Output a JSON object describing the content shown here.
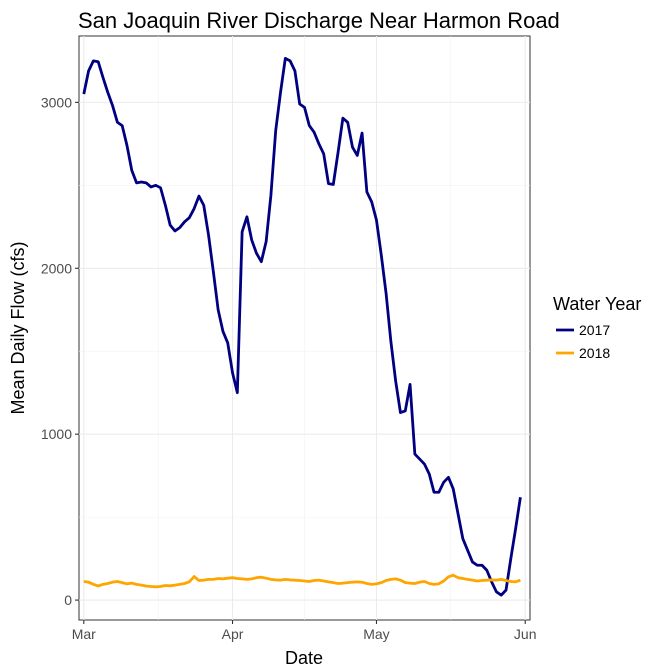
{
  "chart_data": {
    "type": "line",
    "title": "San Joaquin River Discharge Near Harmon Road",
    "xlabel": "Date",
    "ylabel": "Mean Daily Flow (cfs)",
    "ylim": [
      -120,
      3400
    ],
    "xlim": [
      "2017-02-28",
      "2017-06-02"
    ],
    "x_ticks": [
      {
        "date": "2017-03-01",
        "label": "Mar"
      },
      {
        "date": "2017-04-01",
        "label": "Apr"
      },
      {
        "date": "2017-05-01",
        "label": "May"
      },
      {
        "date": "2017-06-01",
        "label": "Jun"
      }
    ],
    "y_ticks": [
      0,
      1000,
      2000,
      3000
    ],
    "grid": true,
    "legend": {
      "title": "Water Year",
      "position": "right"
    },
    "x": [
      "2017-03-01",
      "2017-03-02",
      "2017-03-03",
      "2017-03-04",
      "2017-03-05",
      "2017-03-06",
      "2017-03-07",
      "2017-03-08",
      "2017-03-09",
      "2017-03-10",
      "2017-03-11",
      "2017-03-12",
      "2017-03-13",
      "2017-03-14",
      "2017-03-15",
      "2017-03-16",
      "2017-03-17",
      "2017-03-18",
      "2017-03-19",
      "2017-03-20",
      "2017-03-21",
      "2017-03-22",
      "2017-03-23",
      "2017-03-24",
      "2017-03-25",
      "2017-03-26",
      "2017-03-27",
      "2017-03-28",
      "2017-03-29",
      "2017-03-30",
      "2017-03-31",
      "2017-04-01",
      "2017-04-02",
      "2017-04-03",
      "2017-04-04",
      "2017-04-05",
      "2017-04-06",
      "2017-04-07",
      "2017-04-08",
      "2017-04-09",
      "2017-04-10",
      "2017-04-11",
      "2017-04-12",
      "2017-04-13",
      "2017-04-14",
      "2017-04-15",
      "2017-04-16",
      "2017-04-17",
      "2017-04-18",
      "2017-04-19",
      "2017-04-20",
      "2017-04-21",
      "2017-04-22",
      "2017-04-23",
      "2017-04-24",
      "2017-04-25",
      "2017-04-26",
      "2017-04-27",
      "2017-04-28",
      "2017-04-29",
      "2017-04-30",
      "2017-05-01",
      "2017-05-02",
      "2017-05-03",
      "2017-05-04",
      "2017-05-05",
      "2017-05-06",
      "2017-05-07",
      "2017-05-08",
      "2017-05-09",
      "2017-05-10",
      "2017-05-11",
      "2017-05-12",
      "2017-05-13",
      "2017-05-14",
      "2017-05-15",
      "2017-05-16",
      "2017-05-17",
      "2017-05-18",
      "2017-05-19",
      "2017-05-20",
      "2017-05-21",
      "2017-05-22",
      "2017-05-23",
      "2017-05-24",
      "2017-05-25",
      "2017-05-26",
      "2017-05-27",
      "2017-05-28",
      "2017-05-29",
      "2017-05-30",
      "2017-05-31"
    ],
    "series": [
      {
        "name": "2017",
        "color": "#000080",
        "values": [
          3050,
          3190,
          3250,
          3245,
          3150,
          3060,
          2980,
          2880,
          2860,
          2740,
          2590,
          2515,
          2520,
          2515,
          2490,
          2500,
          2485,
          2380,
          2260,
          2225,
          2245,
          2280,
          2305,
          2360,
          2435,
          2380,
          2200,
          1980,
          1750,
          1620,
          1550,
          1370,
          1250,
          2220,
          2310,
          2170,
          2090,
          2040,
          2160,
          2440,
          2830,
          3060,
          3265,
          3250,
          3190,
          2990,
          2970,
          2860,
          2820,
          2750,
          2690,
          2510,
          2505,
          2700,
          2905,
          2880,
          2730,
          2680,
          2815,
          2460,
          2400,
          2290,
          2080,
          1850,
          1560,
          1320,
          1130,
          1140,
          1300,
          880,
          850,
          820,
          760,
          650,
          650,
          710,
          740,
          670,
          520,
          370,
          300,
          230,
          210,
          210,
          180,
          110,
          50,
          30,
          60,
          250,
          430,
          620
        ]
      },
      {
        "name": "2018",
        "color": "#FFA500",
        "values": [
          112,
          108,
          95,
          85,
          95,
          100,
          108,
          112,
          105,
          98,
          102,
          95,
          90,
          85,
          82,
          80,
          82,
          88,
          86,
          90,
          95,
          100,
          110,
          142,
          118,
          120,
          125,
          125,
          130,
          128,
          132,
          135,
          130,
          128,
          125,
          128,
          135,
          138,
          132,
          125,
          122,
          120,
          125,
          122,
          120,
          118,
          115,
          112,
          118,
          120,
          115,
          110,
          105,
          100,
          102,
          105,
          108,
          110,
          108,
          100,
          95,
          98,
          105,
          118,
          125,
          128,
          120,
          105,
          102,
          100,
          108,
          112,
          100,
          95,
          98,
          115,
          140,
          150,
          135,
          130,
          125,
          120,
          115,
          118,
          120,
          122,
          120,
          125,
          118,
          112,
          110,
          120
        ]
      }
    ]
  }
}
